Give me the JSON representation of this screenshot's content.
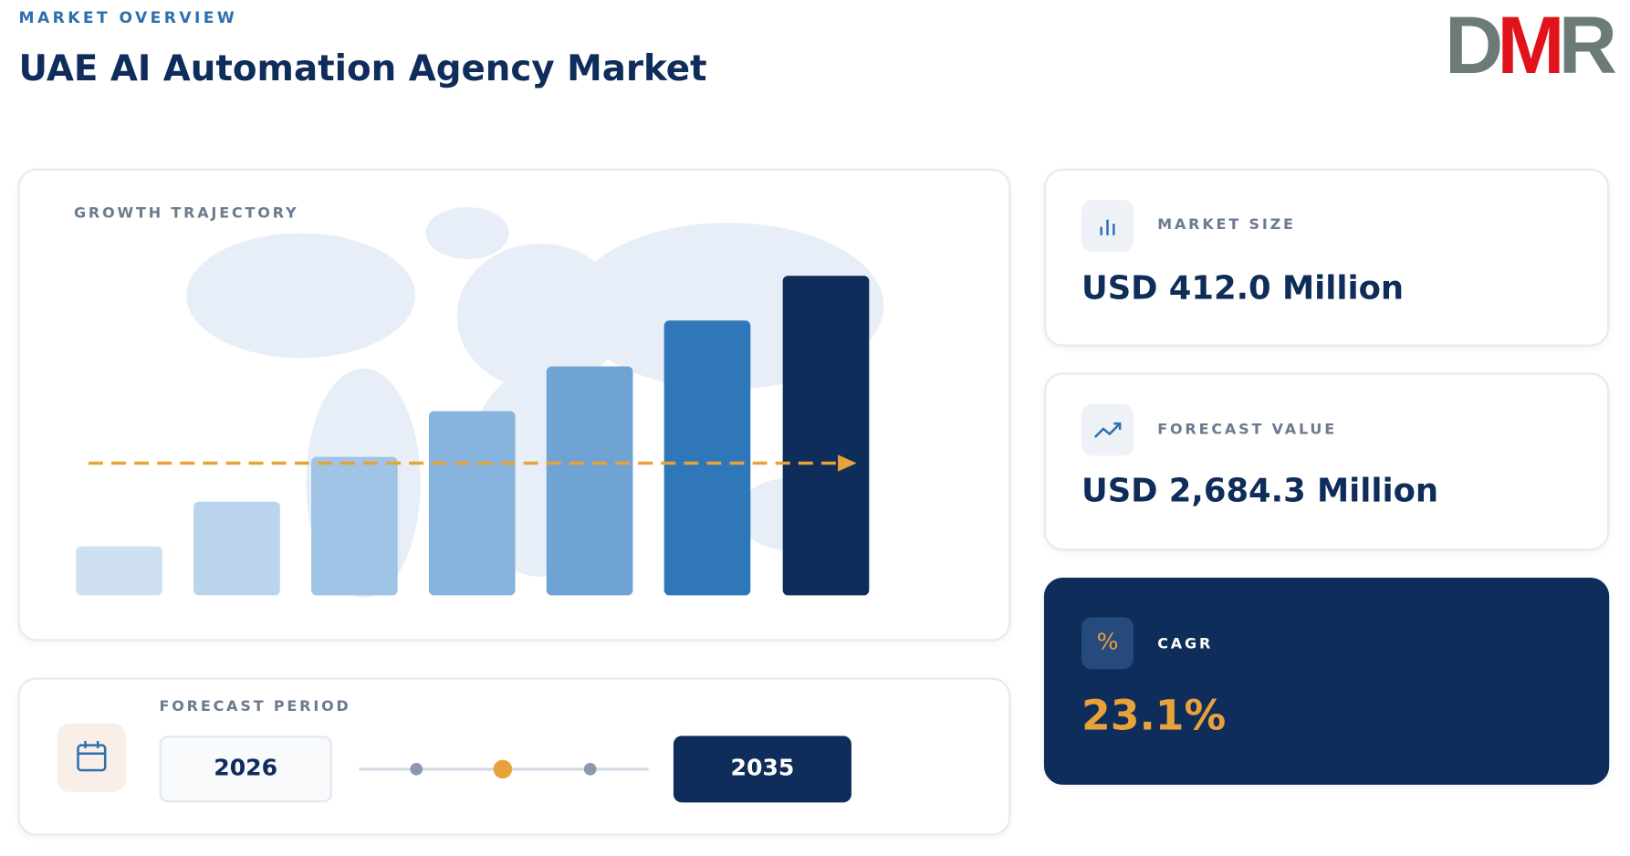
{
  "header": {
    "label": "MARKET OVERVIEW",
    "title": "UAE AI Automation Agency Market"
  },
  "logo": {
    "letters": [
      "D",
      "M",
      "R"
    ]
  },
  "chart_panel": {
    "label": "GROWTH TRAJECTORY"
  },
  "forecast_period": {
    "label": "FORECAST PERIOD",
    "start": "2026",
    "end": "2035"
  },
  "cards": [
    {
      "label": "MARKET SIZE",
      "value": "USD 412.0 Million"
    },
    {
      "label": "FORECAST VALUE",
      "value": "USD 2,684.3 Million"
    },
    {
      "label": "CAGR",
      "value": "23.1%"
    }
  ]
}
